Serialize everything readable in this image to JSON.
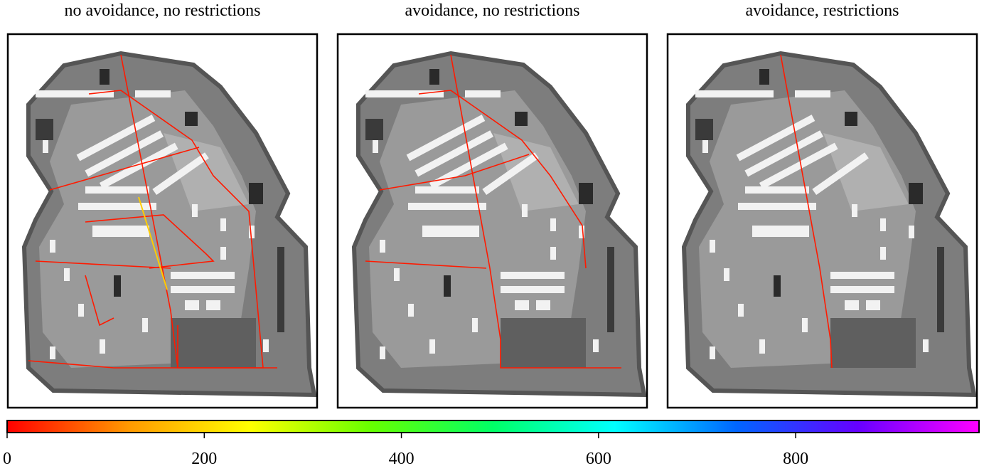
{
  "chart_data": {
    "type": "colorbar",
    "titles": [
      "no avoidance, no restrictions",
      "avoidance, no restrictions",
      "avoidance, restrictions"
    ],
    "colors": [
      "#ff0000",
      "#ff9900",
      "#ffff00",
      "#66ff00",
      "#00ff66",
      "#00ffff",
      "#0066ff",
      "#6600ff",
      "#ff00ff"
    ],
    "xlim": [
      0,
      986
    ],
    "xticks": [
      0,
      200,
      400,
      600,
      800
    ]
  }
}
